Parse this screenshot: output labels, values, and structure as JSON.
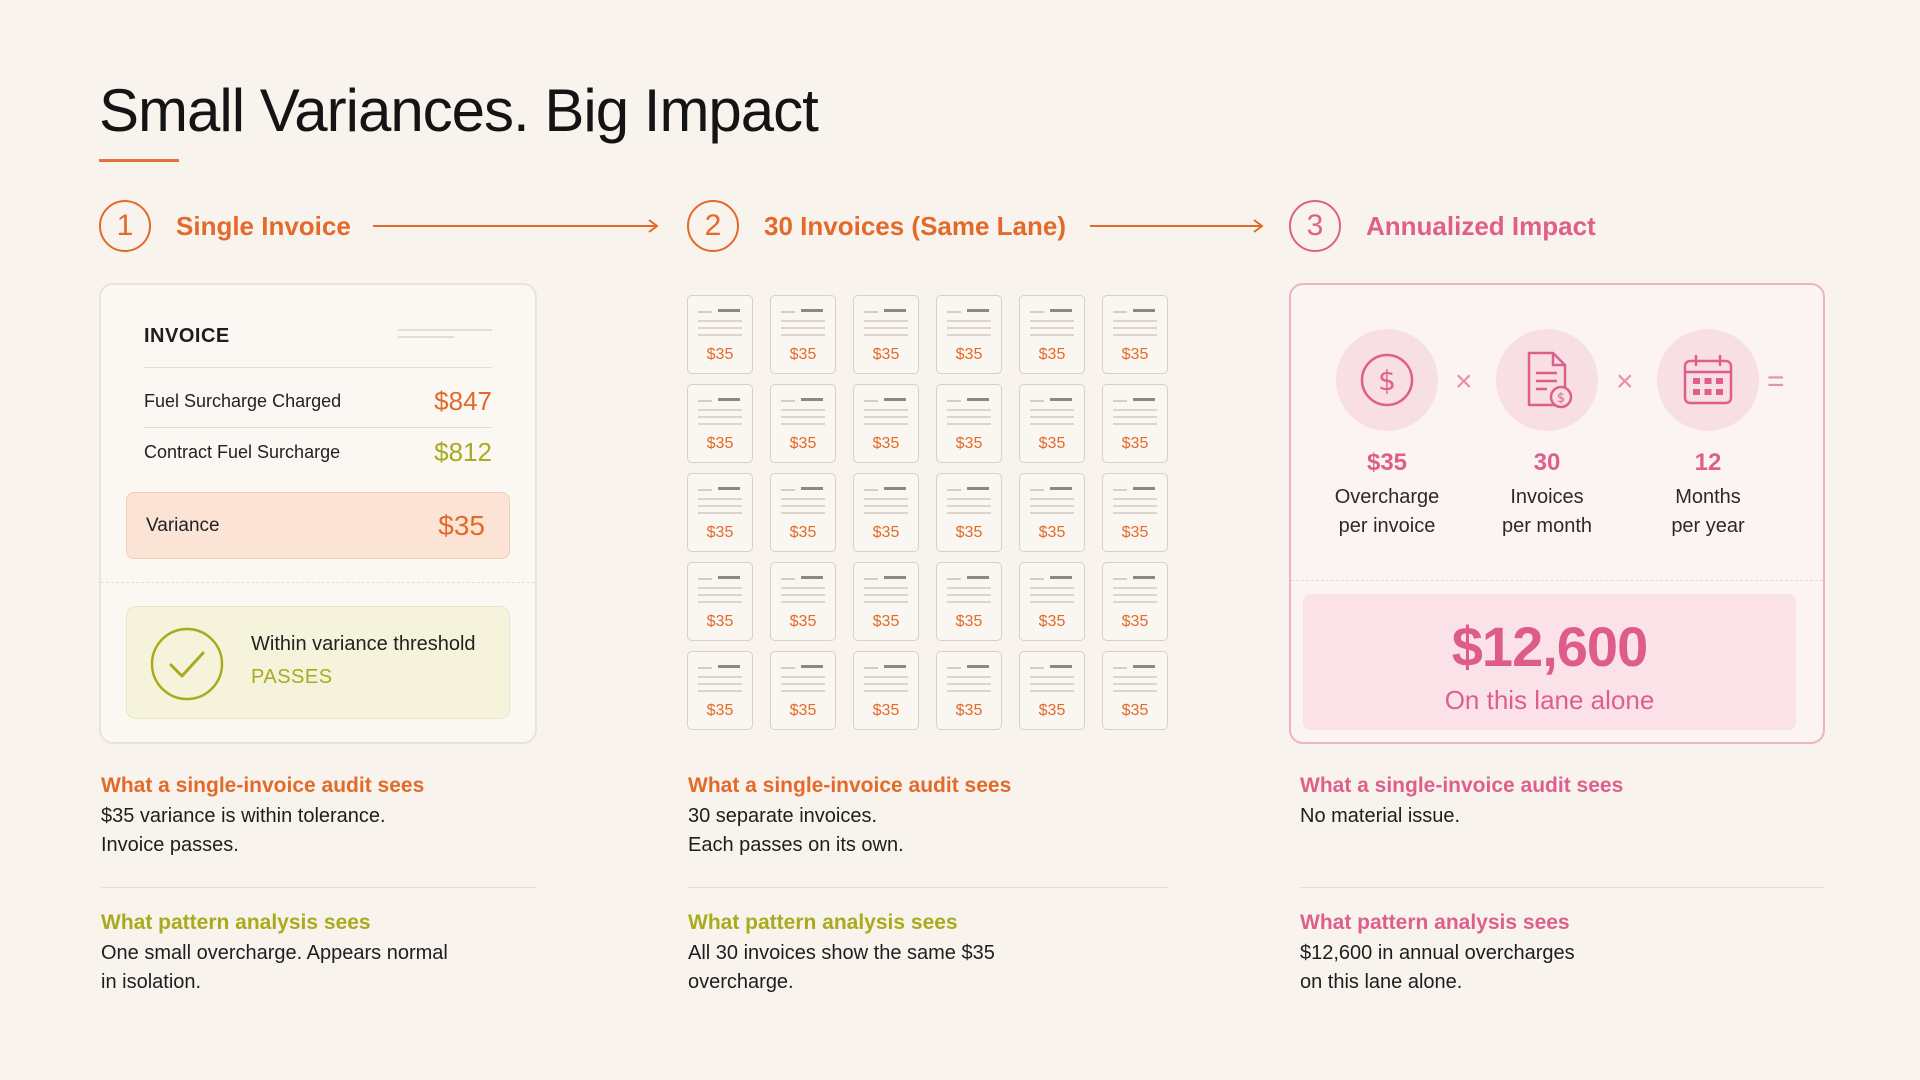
{
  "title": "Small Variances. Big Impact",
  "steps": [
    {
      "number": "1",
      "label": "Single Invoice"
    },
    {
      "number": "2",
      "label": "30 Invoices (Same Lane)"
    },
    {
      "number": "3",
      "label": "Annualized Impact"
    }
  ],
  "invoice": {
    "heading": "INVOICE",
    "rows": [
      {
        "label": "Fuel Surcharge Charged",
        "amount": "$847"
      },
      {
        "label": "Contract Fuel Surcharge",
        "amount": "$812"
      }
    ],
    "variance": {
      "label": "Variance",
      "amount": "$35"
    },
    "threshold": {
      "text": "Within variance threshold",
      "status": "PASSES"
    }
  },
  "grid": {
    "amount": "$35",
    "count": 30
  },
  "annualized": {
    "factors": [
      {
        "value": "$35",
        "line1": "Overcharge",
        "line2": "per invoice",
        "icon": "dollar-icon"
      },
      {
        "value": "30",
        "line1": "Invoices",
        "line2": "per month",
        "icon": "invoice-icon"
      },
      {
        "value": "12",
        "line1": "Months",
        "line2": "per year",
        "icon": "calendar-icon"
      }
    ],
    "operators": [
      "×",
      "×",
      "="
    ],
    "total": "$12,600",
    "total_caption": "On this lane alone"
  },
  "columns": [
    {
      "audit_head": "What a single-invoice audit sees",
      "audit_lines": [
        "$35 variance is within tolerance.",
        "Invoice passes."
      ],
      "pattern_head": "What pattern analysis sees",
      "pattern_lines": [
        "One small overcharge. Appears normal",
        "in isolation."
      ]
    },
    {
      "audit_head": "What a single-invoice audit sees",
      "audit_lines": [
        "30 separate invoices.",
        "Each passes on its own."
      ],
      "pattern_head": "What pattern analysis sees",
      "pattern_lines": [
        "All 30 invoices show the same $35",
        "overcharge."
      ]
    },
    {
      "audit_head": "What a single-invoice audit sees",
      "audit_lines": [
        "No material issue.",
        ""
      ],
      "pattern_head": "What pattern analysis sees",
      "pattern_lines": [
        "$12,600 in annual overcharges",
        "on this lane alone."
      ]
    }
  ],
  "colors": {
    "orange": "#e26a2a",
    "pink": "#df5f8c",
    "olive": "#a9aa1d",
    "background": "#f8f3ed"
  }
}
